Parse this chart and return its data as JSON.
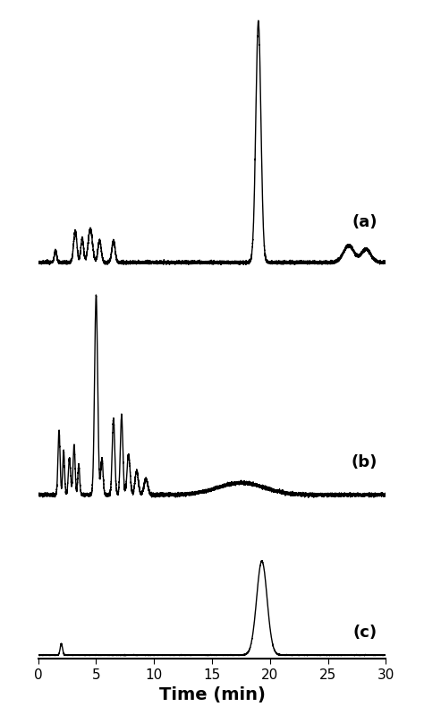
{
  "xlim": [
    0,
    30
  ],
  "xlabel": "Time (min)",
  "xlabel_fontsize": 14,
  "xlabel_fontweight": "bold",
  "tick_fontsize": 11,
  "background_color": "#ffffff",
  "line_color": "#000000",
  "line_width": 1.0,
  "panels": [
    "(a)",
    "(b)",
    "(c)"
  ],
  "panel_label_fontsize": 13,
  "panel_label_fontweight": "bold",
  "panel_a": {
    "peaks": [
      {
        "mu": 1.5,
        "sigma": 0.1,
        "amp": 0.05
      },
      {
        "mu": 3.2,
        "sigma": 0.14,
        "amp": 0.13
      },
      {
        "mu": 3.8,
        "sigma": 0.12,
        "amp": 0.1
      },
      {
        "mu": 4.5,
        "sigma": 0.18,
        "amp": 0.14
      },
      {
        "mu": 5.3,
        "sigma": 0.14,
        "amp": 0.09
      },
      {
        "mu": 6.5,
        "sigma": 0.14,
        "amp": 0.09
      },
      {
        "mu": 19.0,
        "sigma": 0.22,
        "amp": 1.0
      },
      {
        "mu": 26.8,
        "sigma": 0.45,
        "amp": 0.07
      },
      {
        "mu": 28.3,
        "sigma": 0.4,
        "amp": 0.055
      }
    ],
    "noise_seed": 42,
    "noise_std": 0.003
  },
  "panel_b": {
    "peaks": [
      {
        "mu": 1.8,
        "sigma": 0.09,
        "amp": 0.32
      },
      {
        "mu": 2.2,
        "sigma": 0.08,
        "amp": 0.22
      },
      {
        "mu": 2.7,
        "sigma": 0.1,
        "amp": 0.18
      },
      {
        "mu": 3.1,
        "sigma": 0.09,
        "amp": 0.25
      },
      {
        "mu": 3.5,
        "sigma": 0.08,
        "amp": 0.15
      },
      {
        "mu": 5.0,
        "sigma": 0.13,
        "amp": 1.0
      },
      {
        "mu": 5.5,
        "sigma": 0.1,
        "amp": 0.18
      },
      {
        "mu": 6.5,
        "sigma": 0.11,
        "amp": 0.38
      },
      {
        "mu": 7.2,
        "sigma": 0.11,
        "amp": 0.4
      },
      {
        "mu": 7.8,
        "sigma": 0.13,
        "amp": 0.2
      },
      {
        "mu": 8.5,
        "sigma": 0.14,
        "amp": 0.12
      },
      {
        "mu": 9.3,
        "sigma": 0.16,
        "amp": 0.08
      },
      {
        "mu": 17.5,
        "sigma": 2.0,
        "amp": 0.06
      }
    ],
    "noise_seed": 43,
    "noise_std": 0.004
  },
  "panel_c": {
    "peaks": [
      {
        "mu": 2.0,
        "sigma": 0.1,
        "amp": 0.12
      },
      {
        "mu": 19.3,
        "sigma": 0.45,
        "amp": 1.0
      }
    ],
    "noise_seed": 44,
    "noise_std": 0.002
  }
}
